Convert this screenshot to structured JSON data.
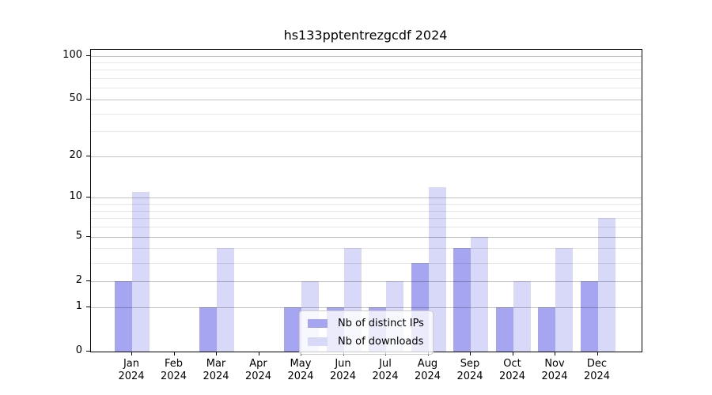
{
  "chart_data": {
    "type": "bar",
    "title": "hs133pptentrezgcdf 2024",
    "year": "2024",
    "categories": [
      "Jan",
      "Feb",
      "Mar",
      "Apr",
      "May",
      "Jun",
      "Jul",
      "Aug",
      "Sep",
      "Oct",
      "Nov",
      "Dec"
    ],
    "series": [
      {
        "name": "Nb of distinct IPs",
        "color": "#a5a5f2",
        "values": [
          2,
          0,
          1,
          0,
          1,
          1,
          1,
          3,
          4,
          1,
          1,
          2
        ]
      },
      {
        "name": "Nb of downloads",
        "color": "#d8d8f8",
        "values": [
          11,
          0,
          4,
          0,
          2,
          4,
          2,
          12,
          5,
          2,
          4,
          7
        ]
      }
    ],
    "y_axis": {
      "scale": "log1p",
      "ticks": [
        0,
        1,
        2,
        5,
        10,
        20,
        50,
        100
      ],
      "minor_gridlines": [
        3,
        4,
        6,
        7,
        8,
        9,
        30,
        40,
        60,
        70,
        80,
        90
      ],
      "ylim": [
        0,
        110
      ]
    },
    "grid": true,
    "legend_position": "lower-center"
  }
}
